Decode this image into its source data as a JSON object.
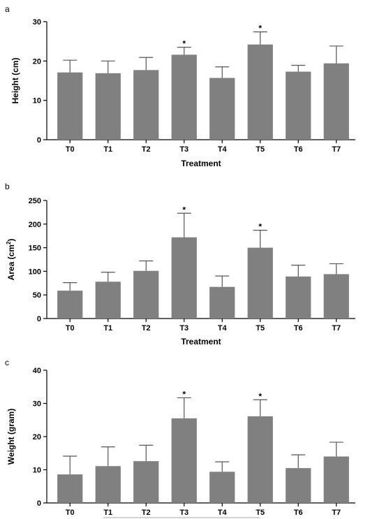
{
  "chart_data": [
    {
      "type": "bar",
      "panel": "a",
      "categories": [
        "T0",
        "T1",
        "T2",
        "T3",
        "T4",
        "T5",
        "T6",
        "T7"
      ],
      "values": [
        17.1,
        16.9,
        17.7,
        21.6,
        15.7,
        24.2,
        17.3,
        19.4
      ],
      "errors": [
        3.1,
        3.1,
        3.2,
        1.9,
        2.8,
        3.2,
        1.6,
        4.4
      ],
      "significant": [
        "",
        "",
        "",
        "*",
        "",
        "*",
        "",
        ""
      ],
      "xlabel": "Treatment",
      "ylabel": "Height (cm)",
      "ylabel_base": "Height (cm)",
      "ylabel_sup": "",
      "ylabel_tail": "",
      "ylim": [
        0,
        30
      ],
      "yticks": [
        0,
        10,
        20,
        30
      ],
      "color": "#808080"
    },
    {
      "type": "bar",
      "panel": "b",
      "categories": [
        "T0",
        "T1",
        "T2",
        "T3",
        "T4",
        "T5",
        "T6",
        "T7"
      ],
      "values": [
        59,
        78,
        101,
        172,
        67,
        150,
        89,
        94
      ],
      "errors": [
        17,
        20,
        21,
        51,
        23,
        37,
        24,
        22
      ],
      "significant": [
        "",
        "",
        "",
        "*",
        "",
        "*",
        "",
        ""
      ],
      "xlabel": "Treatment",
      "ylabel": "Area (cm2)",
      "ylabel_base": "Area (cm",
      "ylabel_sup": "2",
      "ylabel_tail": ")",
      "ylim": [
        0,
        250
      ],
      "yticks": [
        0,
        50,
        100,
        150,
        200,
        250
      ],
      "color": "#808080"
    },
    {
      "type": "bar",
      "panel": "c",
      "categories": [
        "T0",
        "T1",
        "T2",
        "T3",
        "T4",
        "T5",
        "T6",
        "T7"
      ],
      "values": [
        8.6,
        11.1,
        12.6,
        25.5,
        9.4,
        26.1,
        10.5,
        14.0
      ],
      "errors": [
        5.5,
        5.8,
        4.8,
        6.2,
        3.0,
        5.0,
        4.0,
        4.3
      ],
      "significant": [
        "",
        "",
        "",
        "*",
        "",
        "*",
        "",
        ""
      ],
      "xlabel": "",
      "ylabel": "Weight (gram)",
      "ylabel_base": "Weight (gram)",
      "ylabel_sup": "",
      "ylabel_tail": "",
      "ylim": [
        0,
        40
      ],
      "yticks": [
        0,
        10,
        20,
        30,
        40
      ],
      "color": "#808080"
    }
  ]
}
